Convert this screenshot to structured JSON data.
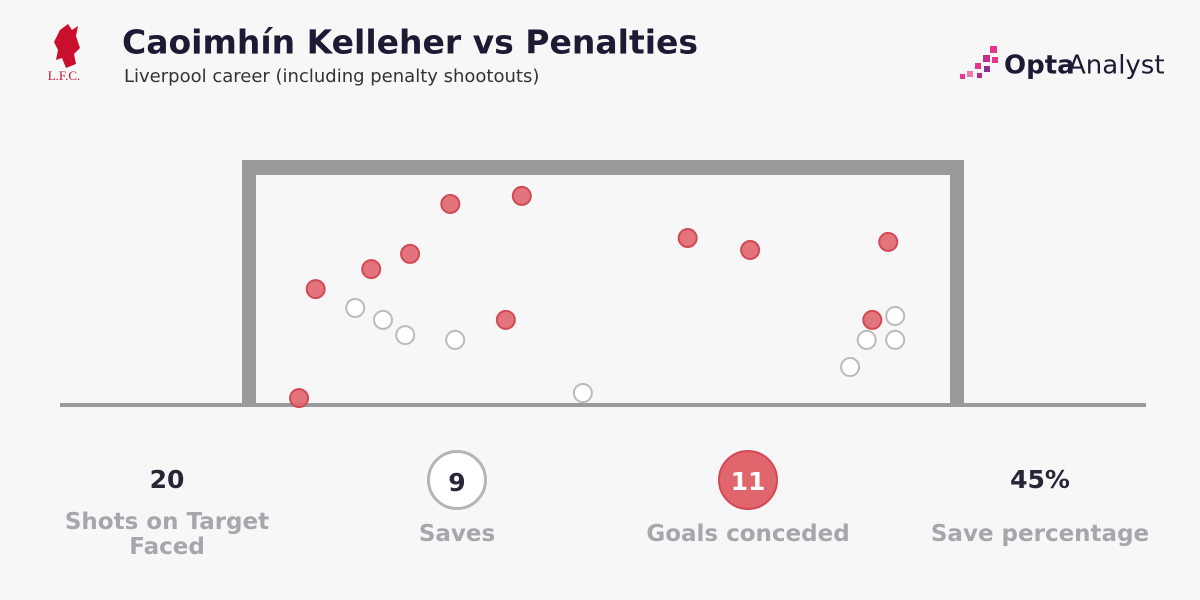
{
  "chart_data": {
    "type": "scatter",
    "title": "Caoimhín Kelleher vs Penalties",
    "subtitle": "Liverpool career (including penalty shootouts)",
    "xlim": [
      0,
      100
    ],
    "ylim": [
      0,
      100
    ],
    "series": [
      {
        "name": "Goals conceded",
        "color": "#e0656d",
        "x": [
          8.6,
          16.6,
          22.2,
          28.0,
          38.3,
          36.0,
          6.2,
          62.2,
          71.2,
          91.1,
          88.8
        ],
        "values": [
          50.4,
          59.1,
          65.7,
          87.4,
          90.9,
          37.0,
          3.0,
          72.6,
          67.4,
          70.9,
          37.0
        ]
      },
      {
        "name": "Saves",
        "color": "#bbbbbb",
        "x": [
          14.3,
          18.3,
          21.5,
          28.7,
          47.1,
          85.6,
          88.0,
          92.1,
          92.1
        ],
        "values": [
          42.2,
          37.0,
          30.4,
          28.3,
          5.2,
          16.5,
          28.3,
          38.7,
          28.3
        ]
      }
    ]
  },
  "club": "L.F.C.",
  "brand": {
    "bold": "Opta",
    "light": "Analyst"
  },
  "stats": [
    {
      "value": 20,
      "label": "Shots on Target Faced",
      "badge": "none"
    },
    {
      "value": 9,
      "label": "Saves",
      "badge": "ring"
    },
    {
      "value": 11,
      "label": "Goals conceded",
      "badge": "disc"
    },
    {
      "value": 45,
      "value_label": "45%",
      "label": "Save percentage",
      "badge": "none"
    }
  ]
}
